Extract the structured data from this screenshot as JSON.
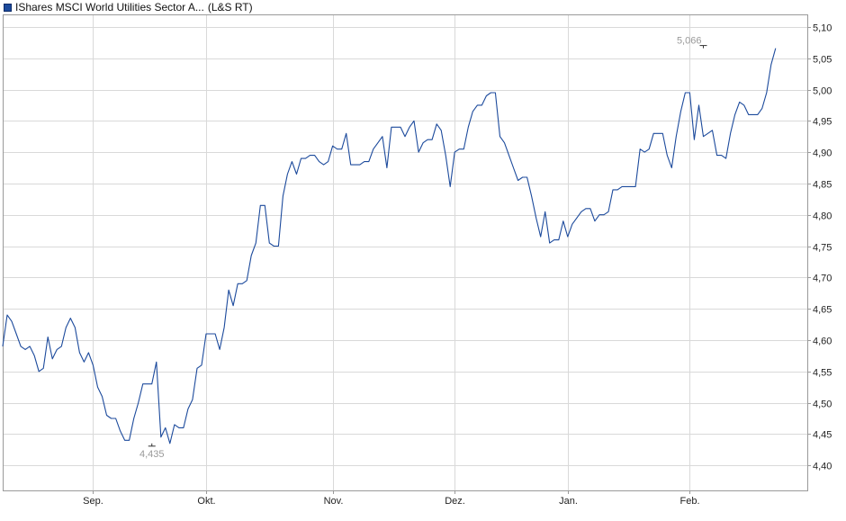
{
  "header": {
    "title": "IShares MSCI World Utilities Sector A...",
    "source": "(L&S RT)"
  },
  "colors": {
    "line": "#1c4a9c",
    "grid": "#d9d9d9",
    "frame": "#9a9a9a",
    "annotation": "#999999",
    "text": "#222222"
  },
  "chart_data": {
    "type": "line",
    "title": "IShares MSCI World Utilities Sector A...",
    "xlabel": "",
    "ylabel": "",
    "ylim": [
      4.36,
      5.12
    ],
    "yticks": [
      "4,40",
      "4,45",
      "4,50",
      "4,55",
      "4,60",
      "4,65",
      "4,70",
      "4,75",
      "4,80",
      "4,85",
      "4,90",
      "4,95",
      "5,00",
      "5,05",
      "5,10"
    ],
    "ytick_values": [
      4.4,
      4.45,
      4.5,
      4.55,
      4.6,
      4.65,
      4.7,
      4.75,
      4.8,
      4.85,
      4.9,
      4.95,
      5.0,
      5.05,
      5.1
    ],
    "xlim": [
      0,
      178
    ],
    "xticks": [
      {
        "label": "Sep.",
        "index": 20
      },
      {
        "label": "Okt.",
        "index": 45
      },
      {
        "label": "Nov.",
        "index": 73
      },
      {
        "label": "Dez.",
        "index": 100
      },
      {
        "label": "Jan.",
        "index": 125
      },
      {
        "label": "Feb.",
        "index": 152
      }
    ],
    "annotations": [
      {
        "label": "4,435",
        "index": 33,
        "value": 4.435,
        "position": "below"
      },
      {
        "label": "5,066",
        "index": 155,
        "value": 5.066,
        "position": "above"
      }
    ],
    "series": [
      {
        "values": [
          4.59,
          4.64,
          4.63,
          4.61,
          4.59,
          4.585,
          4.59,
          4.575,
          4.55,
          4.555,
          4.605,
          4.57,
          4.585,
          4.59,
          4.62,
          4.635,
          4.62,
          4.58,
          4.565,
          4.58,
          4.56,
          4.525,
          4.51,
          4.48,
          4.475,
          4.475,
          4.455,
          4.44,
          4.44,
          4.475,
          4.5,
          4.53,
          4.53,
          4.53,
          4.565,
          4.445,
          4.46,
          4.435,
          4.465,
          4.46,
          4.46,
          4.49,
          4.505,
          4.555,
          4.56,
          4.61,
          4.61,
          4.61,
          4.585,
          4.62,
          4.68,
          4.655,
          4.69,
          4.69,
          4.695,
          4.735,
          4.755,
          4.815,
          4.815,
          4.755,
          4.75,
          4.75,
          4.83,
          4.865,
          4.885,
          4.865,
          4.89,
          4.89,
          4.895,
          4.895,
          4.885,
          4.88,
          4.885,
          4.91,
          4.905,
          4.905,
          4.93,
          4.88,
          4.88,
          4.88,
          4.885,
          4.885,
          4.905,
          4.915,
          4.925,
          4.875,
          4.94,
          4.94,
          4.94,
          4.925,
          4.94,
          4.95,
          4.9,
          4.915,
          4.92,
          4.92,
          4.945,
          4.935,
          4.895,
          4.845,
          4.9,
          4.905,
          4.905,
          4.94,
          4.965,
          4.975,
          4.975,
          4.99,
          4.995,
          4.995,
          4.925,
          4.915,
          4.895,
          4.875,
          4.855,
          4.86,
          4.86,
          4.83,
          4.795,
          4.765,
          4.805,
          4.755,
          4.76,
          4.76,
          4.79,
          4.765,
          4.785,
          4.795,
          4.805,
          4.81,
          4.81,
          4.79,
          4.8,
          4.8,
          4.805,
          4.84,
          4.84,
          4.845,
          4.845,
          4.845,
          4.845,
          4.905,
          4.9,
          4.905,
          4.93,
          4.93,
          4.93,
          4.895,
          4.875,
          4.925,
          4.965,
          4.995,
          4.995,
          4.92,
          4.975,
          4.925,
          4.93,
          4.935,
          4.895,
          4.895,
          4.89,
          4.93,
          4.96,
          4.98,
          4.975,
          4.96,
          4.96,
          4.96,
          4.97,
          4.995,
          5.04,
          5.066
        ]
      }
    ],
    "grid": true,
    "legend": "top-left"
  }
}
